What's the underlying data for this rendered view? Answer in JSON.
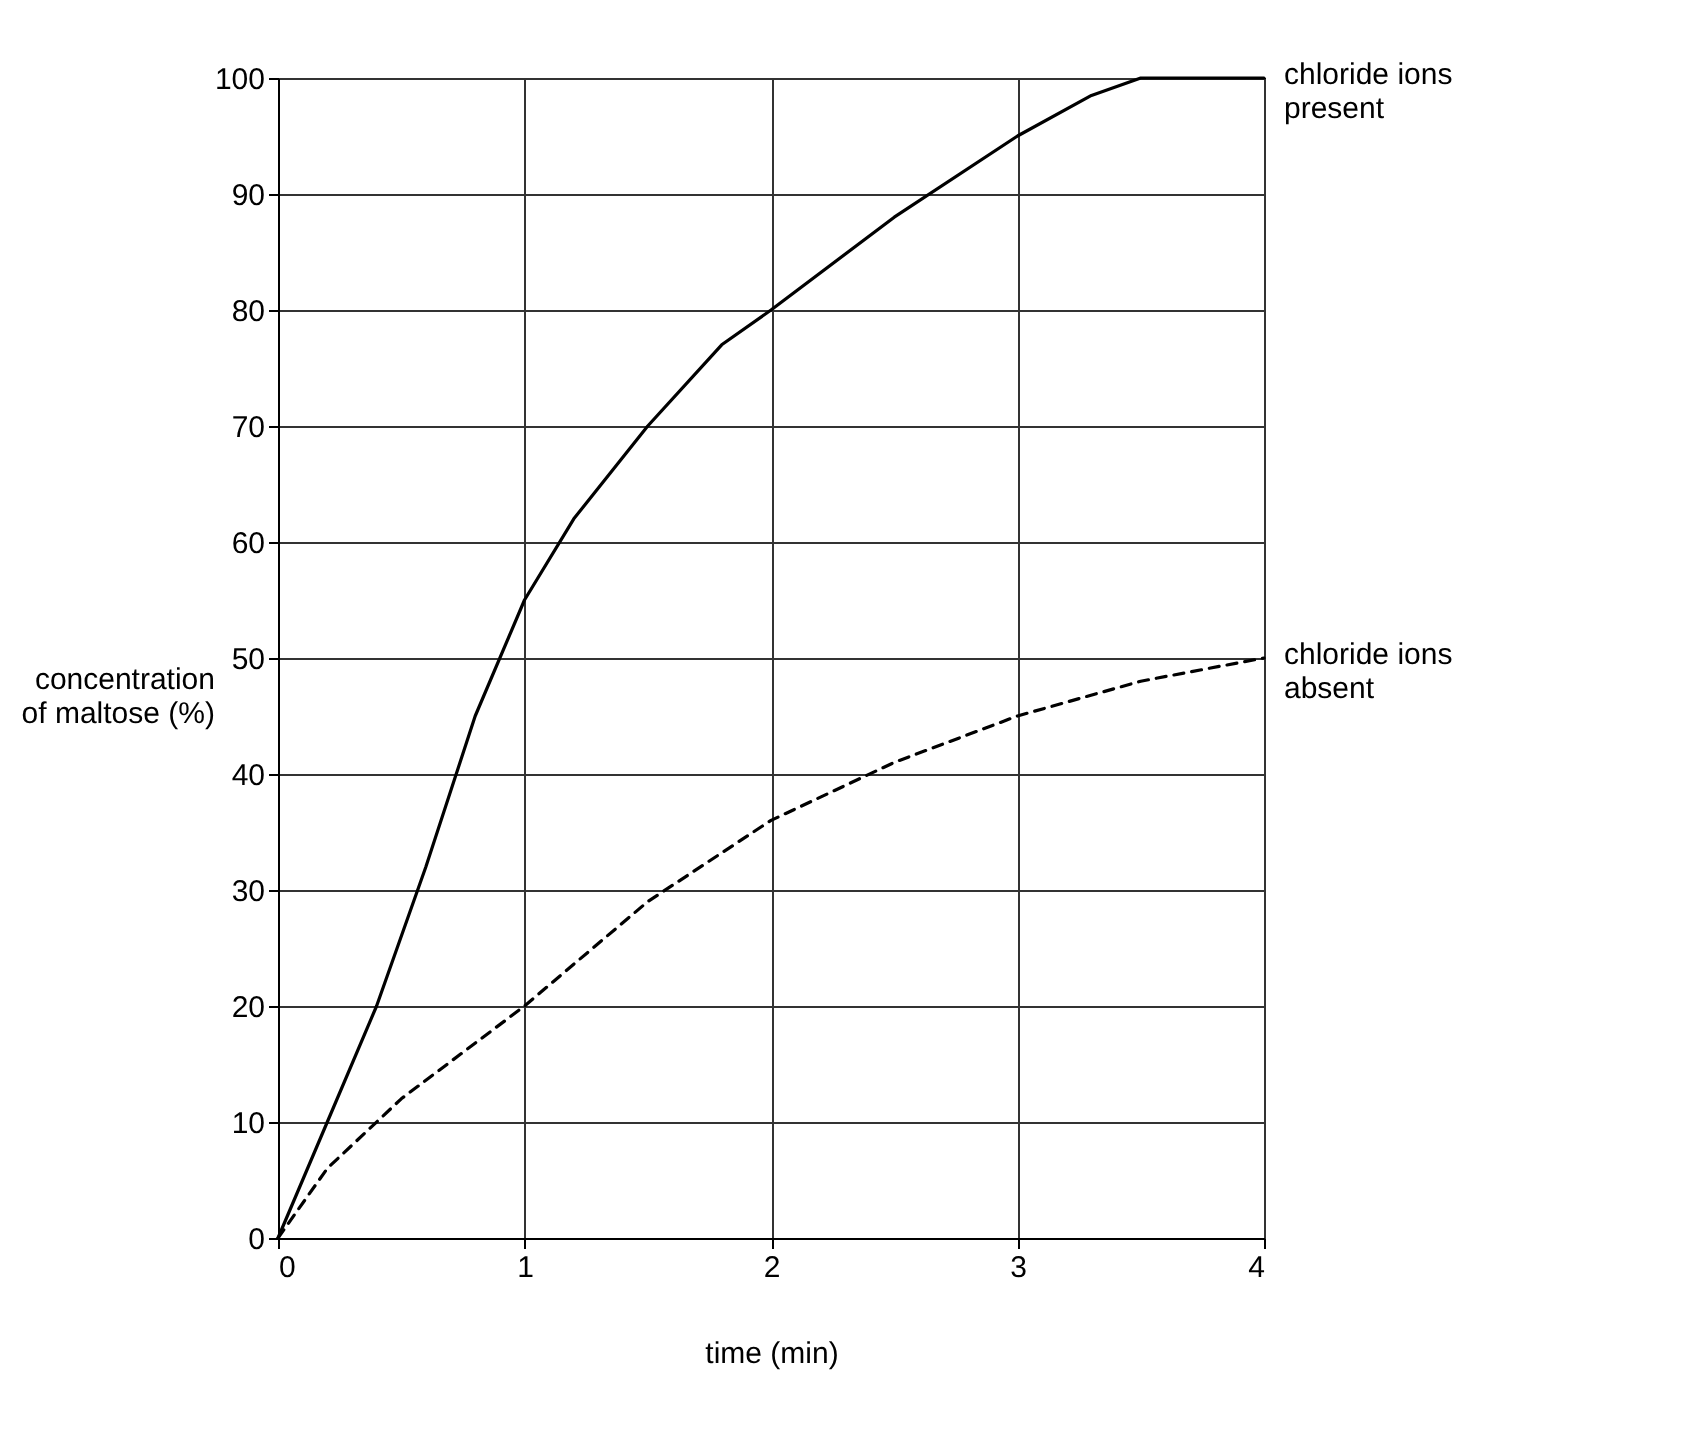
{
  "chart_data": {
    "type": "line",
    "xlabel": "time (min)",
    "ylabel": "concentration of maltose (%)",
    "xlim": [
      0,
      4
    ],
    "xticks": [
      0,
      1,
      2,
      3,
      4
    ],
    "ylim": [
      0,
      100
    ],
    "yticks": [
      0,
      10,
      20,
      30,
      40,
      50,
      60,
      70,
      80,
      90,
      100
    ],
    "grid": true,
    "legend": false,
    "series": [
      {
        "name": "chloride ions present",
        "color": "#000000",
        "line_style": "solid",
        "x": [
          0,
          0.2,
          0.4,
          0.6,
          0.8,
          1.0,
          1.2,
          1.5,
          1.8,
          2.0,
          2.5,
          3.0,
          3.3,
          3.5,
          4.0
        ],
        "values": [
          0,
          10,
          20,
          32,
          45,
          55,
          62,
          70,
          77,
          80,
          88,
          95,
          98.5,
          100,
          100
        ]
      },
      {
        "name": "chloride ions absent",
        "color": "#000000",
        "line_style": "dashed",
        "x": [
          0,
          0.2,
          0.5,
          1.0,
          1.5,
          2.0,
          2.5,
          3.0,
          3.5,
          4.0
        ],
        "values": [
          0,
          6,
          12,
          20,
          29,
          36,
          41,
          45,
          48,
          50
        ]
      }
    ]
  }
}
